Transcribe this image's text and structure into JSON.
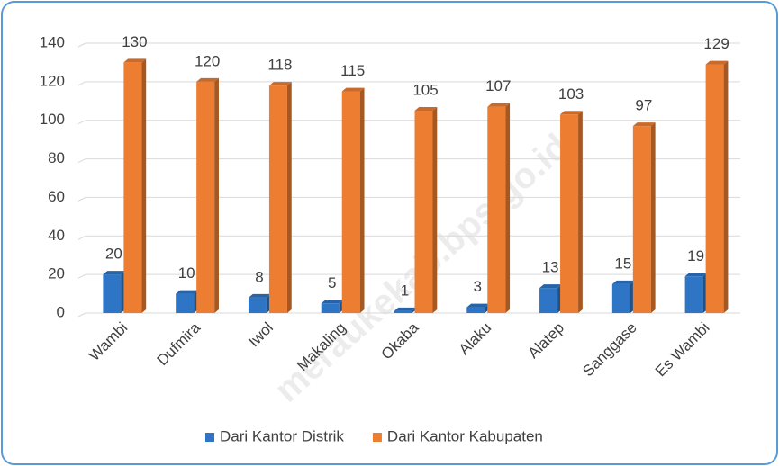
{
  "chart_data": {
    "type": "bar3d",
    "categories": [
      "Wambi",
      "Dufmira",
      "Iwol",
      "Makaling",
      "Okaba",
      "Alaku",
      "Alatep",
      "Sanggase",
      "Es Wambi"
    ],
    "series": [
      {
        "name": "Dari Kantor Distrik",
        "color": "#2e75c5",
        "values": [
          20,
          10,
          8,
          5,
          1,
          3,
          13,
          15,
          19
        ]
      },
      {
        "name": "Dari Kantor Kabupaten",
        "color": "#ed7d31",
        "values": [
          130,
          120,
          118,
          115,
          105,
          107,
          103,
          97,
          129
        ]
      }
    ],
    "ylim": [
      0,
      140
    ],
    "yticks": [
      0,
      20,
      40,
      60,
      80,
      100,
      120,
      140
    ],
    "grid": true,
    "legend": "bottom",
    "watermark": "meraukekab.bps.go.id"
  }
}
